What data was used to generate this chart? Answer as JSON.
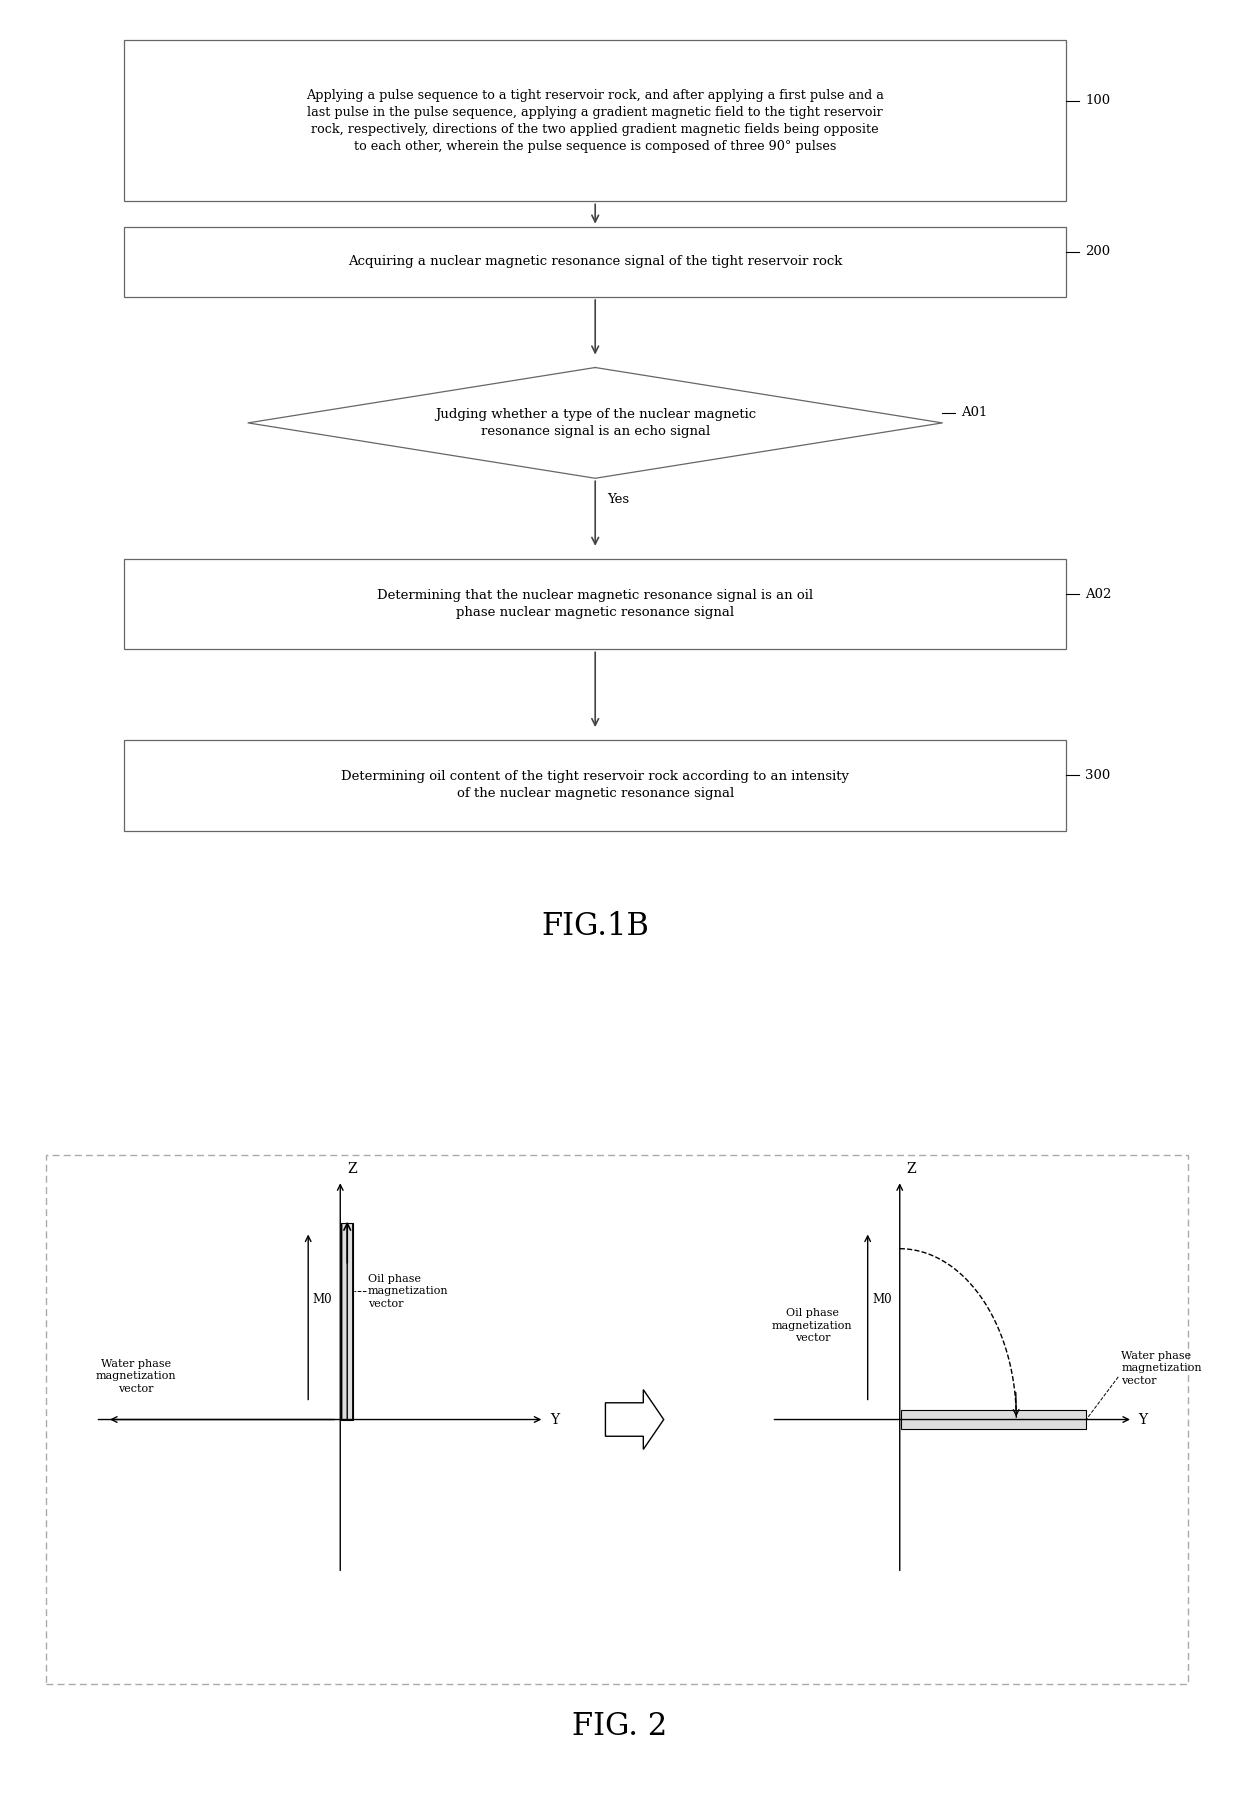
{
  "fig_width": 12.4,
  "fig_height": 17.98,
  "bg_color": "#ffffff",
  "box_edge_color": "#666666",
  "box_fill": "#ffffff",
  "text_color": "#000000",
  "arrow_color": "#444444",
  "block100_text": "Applying a pulse sequence to a tight reservoir rock, and after applying a first pulse and a\nlast pulse in the pulse sequence, applying a gradient magnetic field to the tight reservoir\nrock, respectively, directions of the two applied gradient magnetic fields being opposite\nto each other, wherein the pulse sequence is composed of three 90° pulses",
  "block100_label": "100",
  "block200_text": "Acquiring a nuclear magnetic resonance signal of the tight reservoir rock",
  "block200_label": "200",
  "blockA01_text": "Judging whether a type of the nuclear magnetic\nresonance signal is an echo signal",
  "blockA01_label": "A01",
  "yes_label": "Yes",
  "blockA02_text": "Determining that the nuclear magnetic resonance signal is an oil\nphase nuclear magnetic resonance signal",
  "blockA02_label": "A02",
  "block300_text": "Determining oil content of the tight reservoir rock according to an intensity\nof the nuclear magnetic resonance signal",
  "block300_label": "300",
  "fig1b_label": "FIG.1B",
  "fig2_label": "FIG. 2"
}
